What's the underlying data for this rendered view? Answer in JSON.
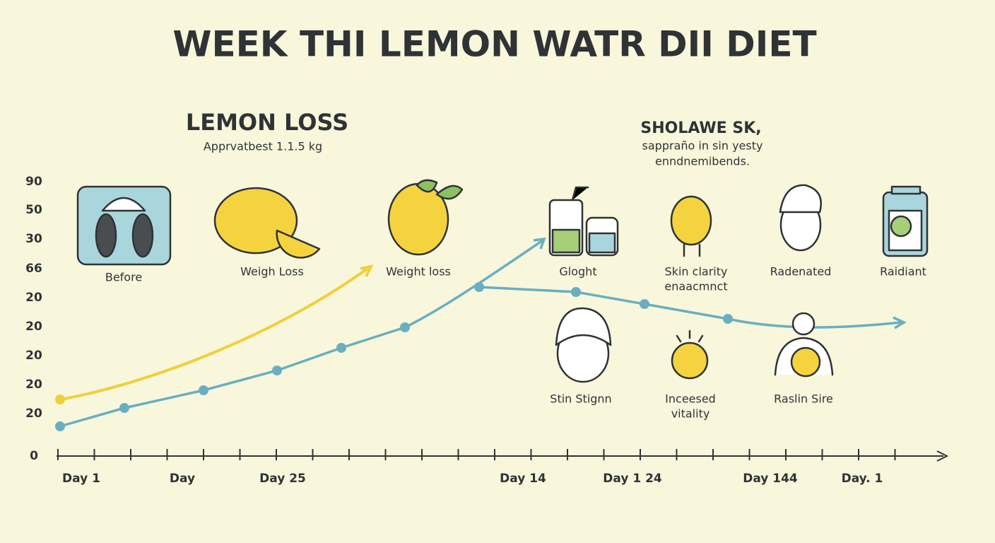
{
  "header": {
    "title": "WEEK THI LEMON WATR DII DIET"
  },
  "left_note": {
    "title": "LEMON LOSS",
    "subtitle": "Apprvatbest 1.1.5 kg"
  },
  "right_note": {
    "title": "SHOLAWE SK,",
    "lines": [
      "sappraño in sin yesty",
      "enndnemibends."
    ]
  },
  "y_labels": [
    "90",
    "50",
    "30",
    "66",
    "20",
    "20",
    "20",
    "20",
    "20",
    "0"
  ],
  "x_labels": [
    "Day 1",
    "Day",
    "Day  25",
    "Day 14",
    "Day  1 24",
    "Day 144",
    "Day. 1"
  ],
  "icons_top": [
    {
      "label": [
        "Before"
      ]
    },
    {
      "label": [
        "Weigh Loss"
      ]
    },
    {
      "label": [
        "Weight loss"
      ]
    },
    {
      "label": [
        "Glоght"
      ]
    },
    {
      "label": [
        "Skin clarity",
        "enaacmnct"
      ]
    },
    {
      "label": [
        "Radenated"
      ]
    },
    {
      "label": [
        "Raidiant"
      ]
    }
  ],
  "icons_bottom": [
    {
      "label": [
        "Stin Stignn"
      ]
    },
    {
      "label": [
        "Inceesed",
        "vitality"
      ]
    },
    {
      "label": [
        "Raslin Sire"
      ]
    }
  ]
}
